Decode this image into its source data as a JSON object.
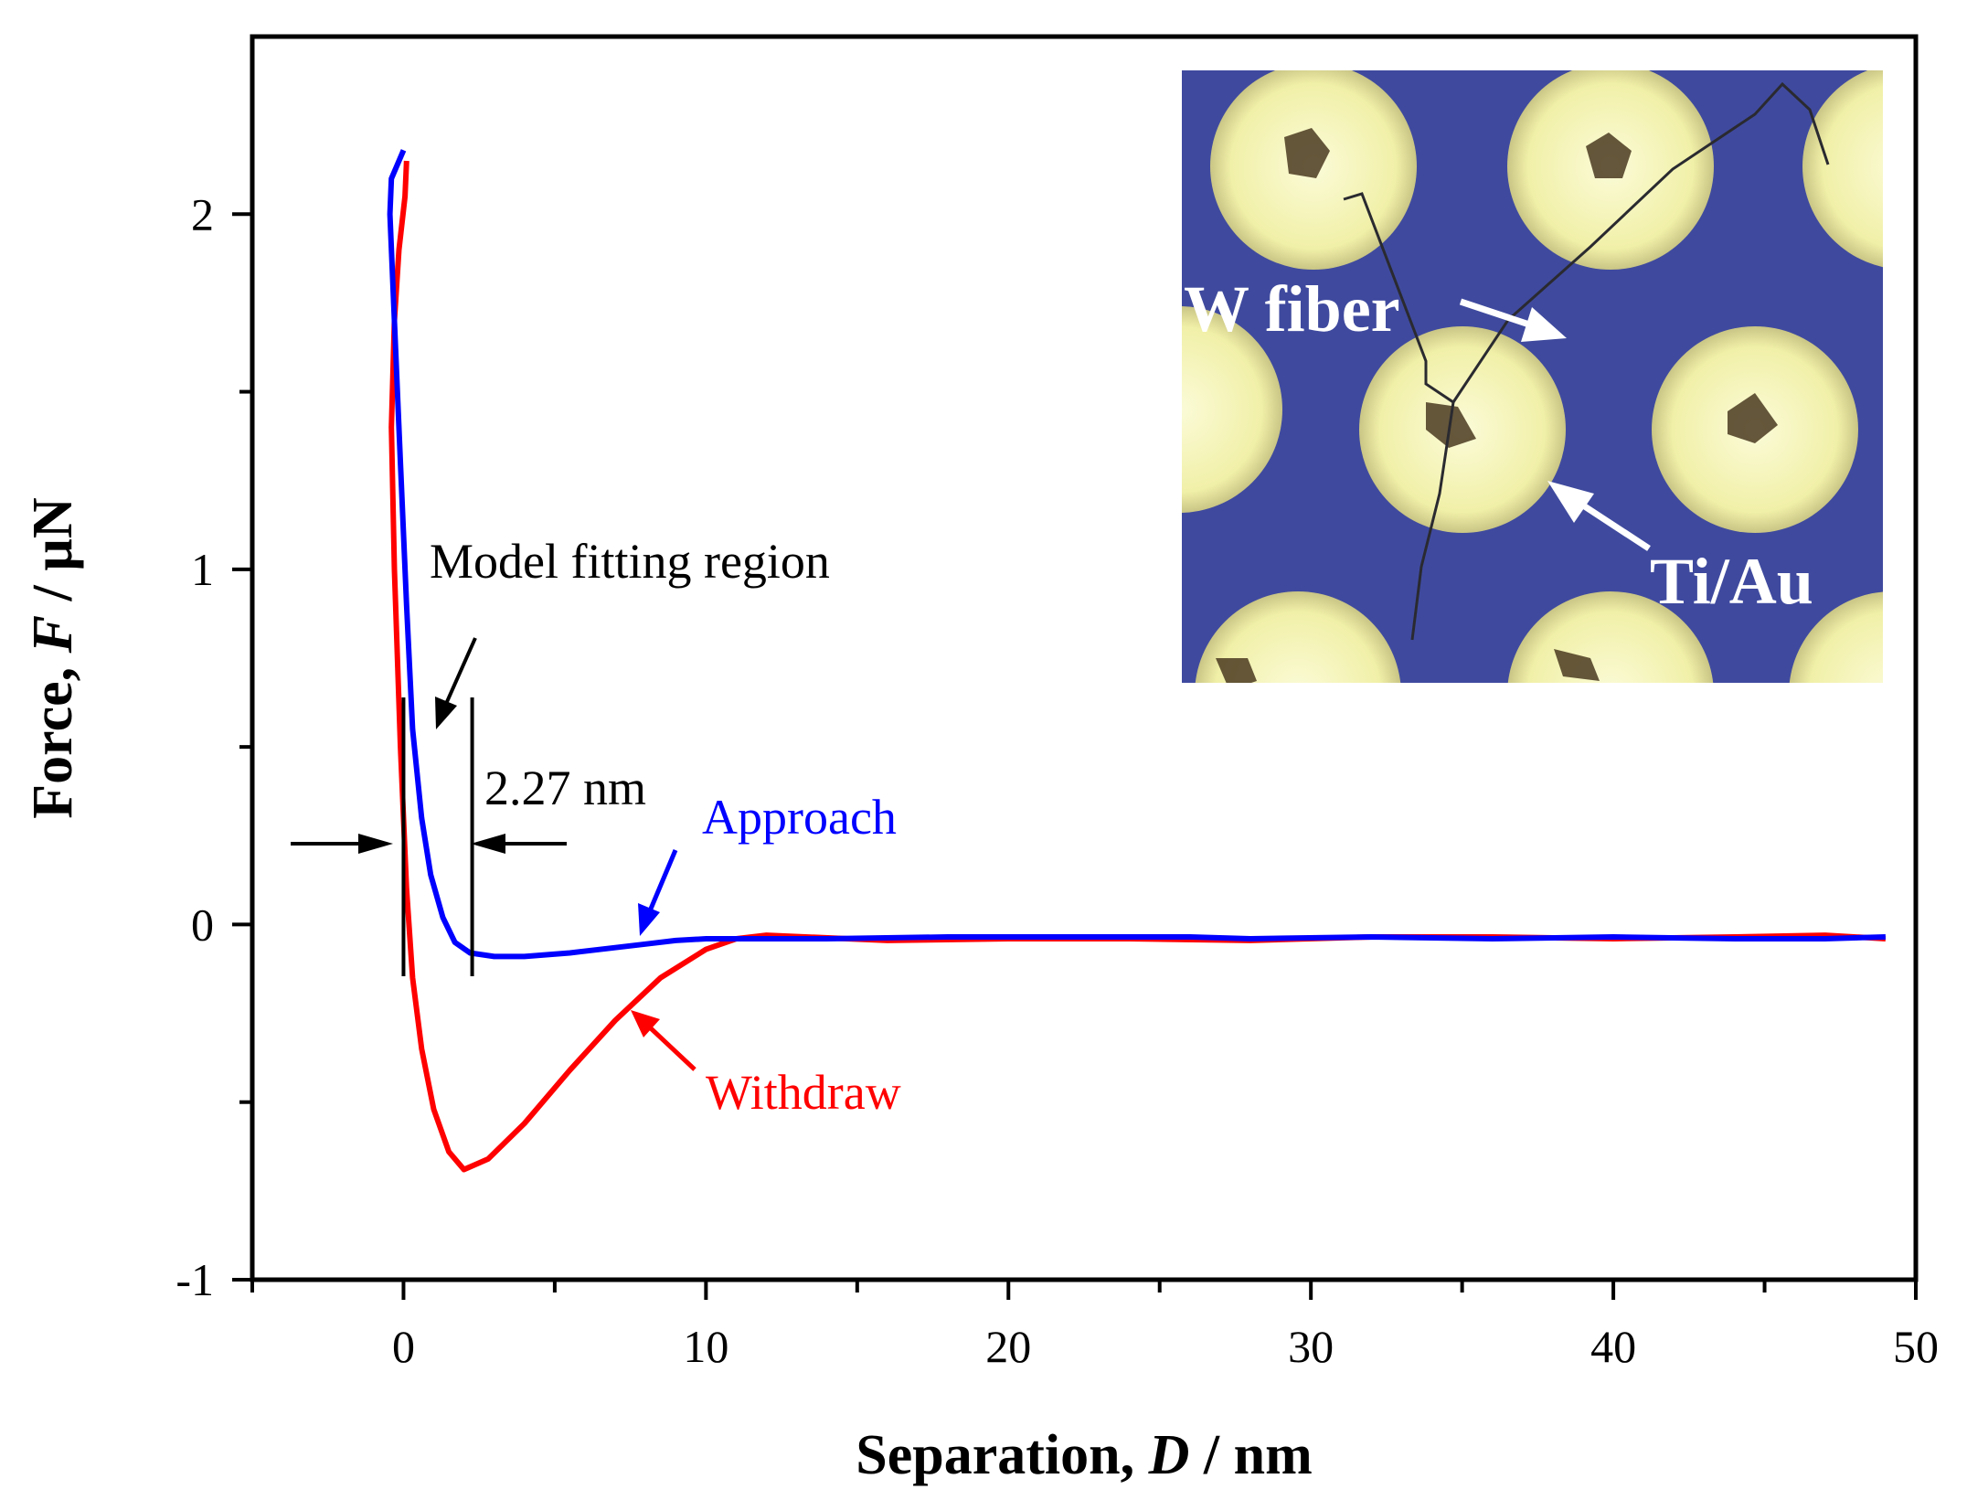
{
  "chart_data": {
    "type": "line",
    "xlabel": "Separation, D / nm",
    "ylabel": "Force, F / µN",
    "xlabel_parts": [
      "Separation, ",
      "D",
      " / nm"
    ],
    "ylabel_parts": [
      "Force, ",
      "F",
      " / µN"
    ],
    "xlim": [
      -5,
      50
    ],
    "ylim": [
      -1,
      2.5
    ],
    "x_ticks": [
      0,
      10,
      20,
      30,
      40,
      50
    ],
    "x_tick_labels": [
      "0",
      "10",
      "20",
      "30",
      "40",
      "50"
    ],
    "x_minor_ticks": [
      -5,
      5,
      15,
      25,
      35,
      45
    ],
    "y_ticks": [
      -1,
      0,
      1,
      2
    ],
    "y_tick_labels": [
      "-1",
      "0",
      "1",
      "2"
    ],
    "y_minor_ticks": [
      -0.5,
      0.5,
      1.5
    ],
    "grid": false,
    "series": [
      {
        "name": "Approach",
        "color": "#0000ff",
        "x": [
          0.0,
          -0.4,
          -0.45,
          -0.3,
          -0.1,
          0.1,
          0.3,
          0.6,
          0.9,
          1.3,
          1.7,
          2.2,
          3.0,
          4.0,
          5.5,
          7.0,
          8.0,
          9.0,
          10.0,
          11.0,
          14.0,
          18.0,
          22.0,
          26.0,
          28.0,
          32.0,
          36.0,
          40.0,
          44.0,
          47.0,
          49.0
        ],
        "y": [
          2.18,
          2.1,
          2.0,
          1.7,
          1.3,
          0.9,
          0.55,
          0.3,
          0.14,
          0.02,
          -0.05,
          -0.08,
          -0.09,
          -0.09,
          -0.08,
          -0.065,
          -0.055,
          -0.045,
          -0.04,
          -0.04,
          -0.04,
          -0.035,
          -0.035,
          -0.035,
          -0.04,
          -0.035,
          -0.04,
          -0.035,
          -0.04,
          -0.04,
          -0.035
        ]
      },
      {
        "name": "Withdraw",
        "color": "#ff0000",
        "x": [
          0.1,
          0.05,
          -0.15,
          -0.3,
          -0.4,
          -0.3,
          -0.1,
          0.1,
          0.3,
          0.6,
          1.0,
          1.5,
          2.0,
          2.8,
          4.0,
          5.5,
          7.0,
          8.5,
          10.0,
          11.0,
          12.0,
          16.0,
          20.0,
          24.0,
          28.0,
          32.0,
          36.0,
          40.0,
          44.0,
          47.0,
          49.0
        ],
        "y": [
          2.15,
          2.05,
          1.9,
          1.7,
          1.4,
          1.0,
          0.5,
          0.1,
          -0.15,
          -0.35,
          -0.52,
          -0.64,
          -0.69,
          -0.66,
          -0.56,
          -0.41,
          -0.27,
          -0.15,
          -0.07,
          -0.04,
          -0.03,
          -0.045,
          -0.04,
          -0.04,
          -0.045,
          -0.035,
          -0.035,
          -0.04,
          -0.035,
          -0.03,
          -0.04
        ]
      }
    ],
    "annotations": {
      "model_region": "Model fitting region",
      "gap": "2.27 nm",
      "approach_label": "Approach",
      "withdraw_label": "Withdraw",
      "region_x": [
        0.0,
        2.27
      ]
    },
    "inset": {
      "label_fiber": "W fiber",
      "label_pads": "Ti/Au",
      "colors": {
        "background": "#3f4a9e",
        "pad": "#f1f0a8",
        "pad_center": "#fbfbd8",
        "fiber": "#2a2a30"
      }
    }
  }
}
